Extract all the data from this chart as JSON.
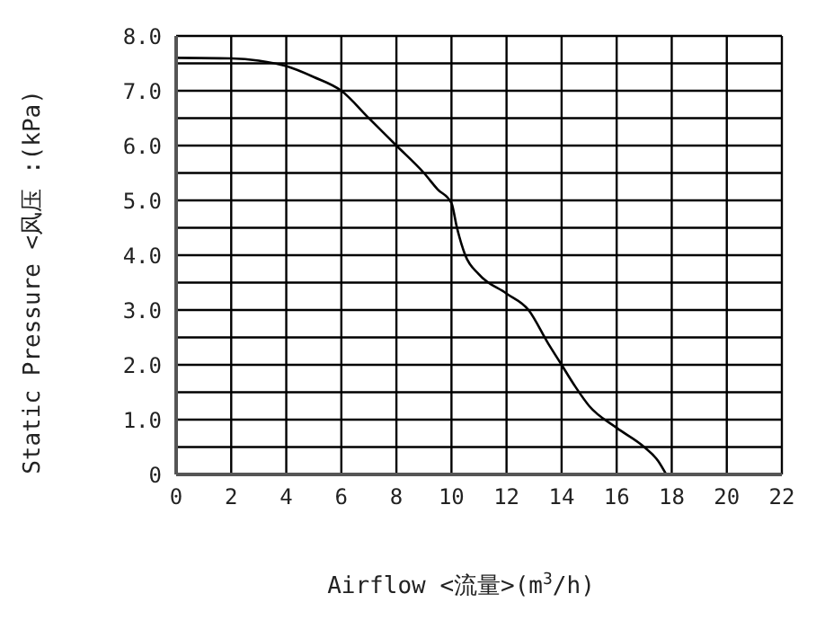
{
  "chart_data": {
    "type": "line",
    "xlabel": "Airflow <流量>(m$^{3}$/h)",
    "ylabel": "Static Pressure <风压 :(kPa)",
    "x": [
      0,
      2,
      3,
      4,
      5,
      6,
      7,
      8,
      9,
      9.5,
      10,
      10.2,
      10.5,
      11,
      12,
      12.8,
      13.5,
      14,
      14.5,
      15,
      16,
      17,
      17.5,
      17.8
    ],
    "series": [
      {
        "color": "#000000",
        "values": [
          7.6,
          7.59,
          7.55,
          7.45,
          7.25,
          7.0,
          6.5,
          6.0,
          5.5,
          5.2,
          4.95,
          4.5,
          4.0,
          3.65,
          3.3,
          3.0,
          2.4,
          2.0,
          1.6,
          1.25,
          0.85,
          0.5,
          0.25,
          0
        ]
      }
    ],
    "xlim": [
      0,
      22
    ],
    "xticks": [
      0,
      2,
      4,
      6,
      8,
      10,
      12,
      14,
      16,
      18,
      20,
      22
    ],
    "ylim": [
      0,
      8
    ],
    "yticks": [
      0,
      {
        "value": 0.5,
        "label": null
      },
      {
        "value": 1,
        "label": "1.0"
      },
      {
        "value": 1.5,
        "label": null
      },
      {
        "value": 2,
        "label": "2.0"
      },
      {
        "value": 2.5,
        "label": null
      },
      {
        "value": 3,
        "label": "3.0"
      },
      {
        "value": 3.5,
        "label": null
      },
      {
        "value": 4,
        "label": "4.0"
      },
      {
        "value": 4.5,
        "label": null
      },
      {
        "value": 5,
        "label": "5.0"
      },
      {
        "value": 5.5,
        "label": null
      },
      {
        "value": 6,
        "label": "6.0"
      },
      {
        "value": 6.5,
        "label": null
      },
      {
        "value": 7,
        "label": "7.0"
      },
      {
        "value": 7.5,
        "label": null
      },
      {
        "value": 8,
        "label": "8.0"
      }
    ],
    "grid": true,
    "marker": "none",
    "line_style": "solid",
    "legend": false
  }
}
